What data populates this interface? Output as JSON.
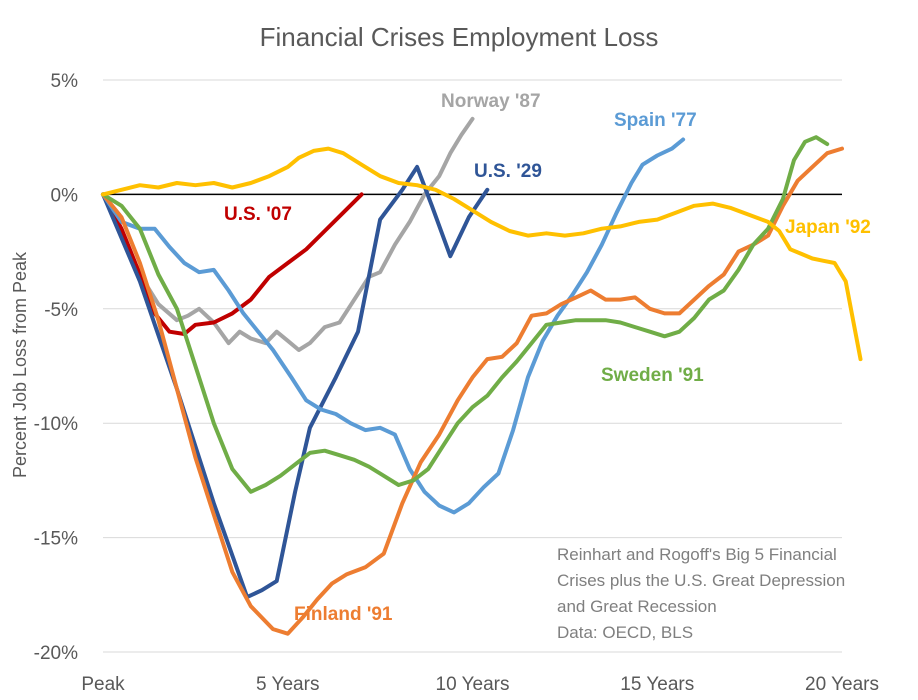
{
  "chart_data": {
    "type": "line",
    "title": "Financial Crises Employment Loss",
    "xlabel": "",
    "ylabel": "Percent Job Loss from Peak",
    "x_tick_labels": [
      "Peak",
      "5 Years",
      "10 Years",
      "15 Years",
      "20 Years"
    ],
    "x_tick_values": [
      0,
      5,
      10,
      15,
      20
    ],
    "xlim": [
      0,
      20
    ],
    "y_tick_labels": [
      "5%",
      "0%",
      "-5%",
      "-10%",
      "-15%",
      "-20%"
    ],
    "y_tick_values": [
      5,
      0,
      -5,
      -10,
      -15,
      -20
    ],
    "ylim": [
      -20,
      5
    ],
    "grid": true,
    "note": [
      "Reinhart and Rogoff's Big 5 Financial",
      "Crises plus the U.S. Great Depression",
      "and Great Recession",
      "Data: OECD, BLS"
    ],
    "series": [
      {
        "name": "Norway '87",
        "color": "#a5a5a5",
        "points": [
          [
            0,
            0
          ],
          [
            0.3,
            -1
          ],
          [
            0.6,
            -2
          ],
          [
            1,
            -3.5
          ],
          [
            1.5,
            -4.8
          ],
          [
            2,
            -5.5
          ],
          [
            2.3,
            -5.3
          ],
          [
            2.6,
            -5
          ],
          [
            3,
            -5.6
          ],
          [
            3.4,
            -6.5
          ],
          [
            3.7,
            -6
          ],
          [
            4,
            -6.3
          ],
          [
            4.4,
            -6.5
          ],
          [
            4.7,
            -6
          ],
          [
            5,
            -6.4
          ],
          [
            5.3,
            -6.8
          ],
          [
            5.6,
            -6.5
          ],
          [
            6,
            -5.8
          ],
          [
            6.4,
            -5.6
          ],
          [
            6.8,
            -4.6
          ],
          [
            7.2,
            -3.6
          ],
          [
            7.5,
            -3.4
          ],
          [
            7.9,
            -2.2
          ],
          [
            8.3,
            -1.2
          ],
          [
            8.7,
            0
          ],
          [
            9.1,
            0.8
          ],
          [
            9.4,
            1.8
          ],
          [
            9.7,
            2.6
          ],
          [
            10,
            3.3
          ]
        ]
      },
      {
        "name": "U.S. '07",
        "color": "#c00000",
        "points": [
          [
            0,
            0
          ],
          [
            0.5,
            -1.5
          ],
          [
            1,
            -3.5
          ],
          [
            1.4,
            -5.2
          ],
          [
            1.8,
            -6
          ],
          [
            2.2,
            -6.1
          ],
          [
            2.5,
            -5.7
          ],
          [
            3,
            -5.6
          ],
          [
            3.5,
            -5.2
          ],
          [
            4,
            -4.6
          ],
          [
            4.5,
            -3.6
          ],
          [
            5,
            -3
          ],
          [
            5.5,
            -2.4
          ],
          [
            6,
            -1.6
          ],
          [
            6.5,
            -0.8
          ],
          [
            7,
            0
          ]
        ]
      },
      {
        "name": "U.S. '29",
        "color": "#2f5597",
        "points": [
          [
            0,
            0
          ],
          [
            1,
            -3.8
          ],
          [
            2,
            -8.5
          ],
          [
            3,
            -13.5
          ],
          [
            3.9,
            -17.6
          ],
          [
            4.3,
            -17.3
          ],
          [
            4.7,
            -16.9
          ],
          [
            5.2,
            -13
          ],
          [
            5.6,
            -10.2
          ],
          [
            6.3,
            -8
          ],
          [
            6.9,
            -6
          ],
          [
            7.5,
            -1.1
          ],
          [
            8.1,
            0.2
          ],
          [
            8.5,
            1.2
          ],
          [
            8.9,
            -0.5
          ],
          [
            9.4,
            -2.7
          ],
          [
            9.9,
            -1
          ],
          [
            10.4,
            0.2
          ]
        ]
      },
      {
        "name": "Spain '77",
        "color": "#5b9bd5",
        "points": [
          [
            0,
            0
          ],
          [
            0.5,
            -1.2
          ],
          [
            1,
            -1.5
          ],
          [
            1.4,
            -1.5
          ],
          [
            1.8,
            -2.3
          ],
          [
            2.2,
            -3
          ],
          [
            2.6,
            -3.4
          ],
          [
            3,
            -3.3
          ],
          [
            3.4,
            -4.2
          ],
          [
            3.8,
            -5.2
          ],
          [
            4.2,
            -6
          ],
          [
            4.6,
            -6.8
          ],
          [
            5.1,
            -8
          ],
          [
            5.5,
            -9
          ],
          [
            5.9,
            -9.4
          ],
          [
            6.3,
            -9.6
          ],
          [
            6.7,
            -10
          ],
          [
            7.1,
            -10.3
          ],
          [
            7.5,
            -10.2
          ],
          [
            7.9,
            -10.5
          ],
          [
            8.3,
            -12
          ],
          [
            8.7,
            -13
          ],
          [
            9.1,
            -13.6
          ],
          [
            9.5,
            -13.9
          ],
          [
            9.9,
            -13.5
          ],
          [
            10.3,
            -12.8
          ],
          [
            10.7,
            -12.2
          ],
          [
            11.1,
            -10.3
          ],
          [
            11.5,
            -8
          ],
          [
            11.9,
            -6.4
          ],
          [
            12.3,
            -5.3
          ],
          [
            12.7,
            -4.4
          ],
          [
            13.1,
            -3.4
          ],
          [
            13.5,
            -2.2
          ],
          [
            13.9,
            -0.8
          ],
          [
            14.3,
            0.5
          ],
          [
            14.6,
            1.3
          ],
          [
            15,
            1.7
          ],
          [
            15.4,
            2
          ],
          [
            15.7,
            2.4
          ]
        ]
      },
      {
        "name": "Finland '91",
        "color": "#ed7d31",
        "points": [
          [
            0,
            0
          ],
          [
            0.5,
            -1
          ],
          [
            1,
            -3
          ],
          [
            1.5,
            -5.5
          ],
          [
            2,
            -8.5
          ],
          [
            2.5,
            -11.5
          ],
          [
            3,
            -14
          ],
          [
            3.5,
            -16.5
          ],
          [
            4,
            -18
          ],
          [
            4.6,
            -19
          ],
          [
            5,
            -19.2
          ],
          [
            5.4,
            -18.5
          ],
          [
            5.8,
            -17.7
          ],
          [
            6.2,
            -17
          ],
          [
            6.6,
            -16.6
          ],
          [
            7.1,
            -16.3
          ],
          [
            7.6,
            -15.7
          ],
          [
            8.1,
            -13.5
          ],
          [
            8.6,
            -11.7
          ],
          [
            9.1,
            -10.5
          ],
          [
            9.6,
            -9
          ],
          [
            10,
            -8
          ],
          [
            10.4,
            -7.2
          ],
          [
            10.8,
            -7.1
          ],
          [
            11.2,
            -6.5
          ],
          [
            11.6,
            -5.3
          ],
          [
            12,
            -5.2
          ],
          [
            12.4,
            -4.8
          ],
          [
            12.8,
            -4.5
          ],
          [
            13.2,
            -4.2
          ],
          [
            13.6,
            -4.6
          ],
          [
            14,
            -4.6
          ],
          [
            14.4,
            -4.5
          ],
          [
            14.8,
            -5
          ],
          [
            15.2,
            -5.2
          ],
          [
            15.6,
            -5.2
          ],
          [
            16,
            -4.6
          ],
          [
            16.4,
            -4
          ],
          [
            16.8,
            -3.5
          ],
          [
            17.2,
            -2.5
          ],
          [
            17.6,
            -2.2
          ],
          [
            18,
            -1.8
          ],
          [
            18.4,
            -0.5
          ],
          [
            18.8,
            0.6
          ],
          [
            19.2,
            1.2
          ],
          [
            19.6,
            1.8
          ],
          [
            20,
            2
          ]
        ]
      },
      {
        "name": "Sweden '91",
        "color": "#70ad47",
        "points": [
          [
            0,
            0
          ],
          [
            0.5,
            -0.5
          ],
          [
            1,
            -1.5
          ],
          [
            1.5,
            -3.5
          ],
          [
            2,
            -5
          ],
          [
            2.5,
            -7.5
          ],
          [
            3,
            -10
          ],
          [
            3.5,
            -12
          ],
          [
            4,
            -13
          ],
          [
            4.4,
            -12.7
          ],
          [
            4.8,
            -12.3
          ],
          [
            5.2,
            -11.8
          ],
          [
            5.6,
            -11.3
          ],
          [
            6,
            -11.2
          ],
          [
            6.4,
            -11.4
          ],
          [
            6.8,
            -11.6
          ],
          [
            7.2,
            -11.9
          ],
          [
            7.6,
            -12.3
          ],
          [
            8,
            -12.7
          ],
          [
            8.4,
            -12.5
          ],
          [
            8.8,
            -12
          ],
          [
            9.2,
            -11
          ],
          [
            9.6,
            -10
          ],
          [
            10,
            -9.3
          ],
          [
            10.4,
            -8.8
          ],
          [
            10.8,
            -8
          ],
          [
            11.2,
            -7.3
          ],
          [
            11.6,
            -6.5
          ],
          [
            12,
            -5.7
          ],
          [
            12.4,
            -5.6
          ],
          [
            12.8,
            -5.5
          ],
          [
            13.2,
            -5.5
          ],
          [
            13.6,
            -5.5
          ],
          [
            14,
            -5.6
          ],
          [
            14.4,
            -5.8
          ],
          [
            14.8,
            -6
          ],
          [
            15.2,
            -6.2
          ],
          [
            15.6,
            -6
          ],
          [
            16,
            -5.4
          ],
          [
            16.4,
            -4.6
          ],
          [
            16.8,
            -4.2
          ],
          [
            17.2,
            -3.3
          ],
          [
            17.6,
            -2.2
          ],
          [
            18,
            -1.5
          ],
          [
            18.4,
            -0.2
          ],
          [
            18.7,
            1.5
          ],
          [
            19,
            2.3
          ],
          [
            19.3,
            2.5
          ],
          [
            19.6,
            2.2
          ]
        ]
      },
      {
        "name": "Japan '92",
        "color": "#ffc000",
        "points": [
          [
            0,
            0
          ],
          [
            0.5,
            0.2
          ],
          [
            1,
            0.4
          ],
          [
            1.5,
            0.3
          ],
          [
            2,
            0.5
          ],
          [
            2.5,
            0.4
          ],
          [
            3,
            0.5
          ],
          [
            3.5,
            0.3
          ],
          [
            4,
            0.5
          ],
          [
            4.5,
            0.8
          ],
          [
            5,
            1.2
          ],
          [
            5.3,
            1.6
          ],
          [
            5.7,
            1.9
          ],
          [
            6.1,
            2
          ],
          [
            6.5,
            1.8
          ],
          [
            7,
            1.3
          ],
          [
            7.5,
            0.8
          ],
          [
            8,
            0.5
          ],
          [
            8.5,
            0.4
          ],
          [
            9,
            0.2
          ],
          [
            9.5,
            -0.2
          ],
          [
            10,
            -0.7
          ],
          [
            10.5,
            -1.2
          ],
          [
            11,
            -1.6
          ],
          [
            11.5,
            -1.8
          ],
          [
            12,
            -1.7
          ],
          [
            12.5,
            -1.8
          ],
          [
            13,
            -1.7
          ],
          [
            13.5,
            -1.5
          ],
          [
            14,
            -1.4
          ],
          [
            14.5,
            -1.2
          ],
          [
            15,
            -1.1
          ],
          [
            15.5,
            -0.8
          ],
          [
            16,
            -0.5
          ],
          [
            16.5,
            -0.4
          ],
          [
            17,
            -0.6
          ],
          [
            17.5,
            -0.9
          ],
          [
            18,
            -1.2
          ],
          [
            18.3,
            -1.6
          ],
          [
            18.6,
            -2.4
          ],
          [
            18.9,
            -2.6
          ],
          [
            19.2,
            -2.8
          ],
          [
            19.5,
            -2.9
          ],
          [
            19.8,
            -3
          ],
          [
            20.1,
            -3.8
          ],
          [
            20.3,
            -5.5
          ],
          [
            20.5,
            -7.2
          ]
        ]
      }
    ]
  }
}
